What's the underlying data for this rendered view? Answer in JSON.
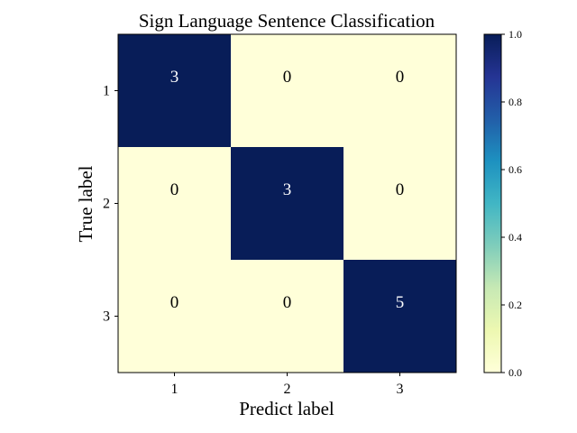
{
  "chart_data": {
    "type": "heatmap",
    "title": "Sign Language Sentence Classification",
    "xlabel": "Predict label",
    "ylabel": "True label",
    "x_categories": [
      "1",
      "2",
      "3"
    ],
    "y_categories": [
      "1",
      "2",
      "3"
    ],
    "values": [
      [
        3,
        0,
        0
      ],
      [
        0,
        3,
        0
      ],
      [
        0,
        0,
        5
      ]
    ],
    "normalized": [
      [
        1.0,
        0.0,
        0.0
      ],
      [
        0.0,
        1.0,
        0.0
      ],
      [
        0.0,
        0.0,
        1.0
      ]
    ],
    "colorbar": {
      "range": [
        0.0,
        1.0
      ],
      "ticks": [
        "0.0",
        "0.2",
        "0.4",
        "0.6",
        "0.8",
        "1.0"
      ],
      "colormap": "YlGnBu"
    },
    "colors": {
      "low": "#ffffd9",
      "high": "#081d58",
      "text_on_dark": "#ffffff",
      "text_on_light": "#000000"
    }
  }
}
